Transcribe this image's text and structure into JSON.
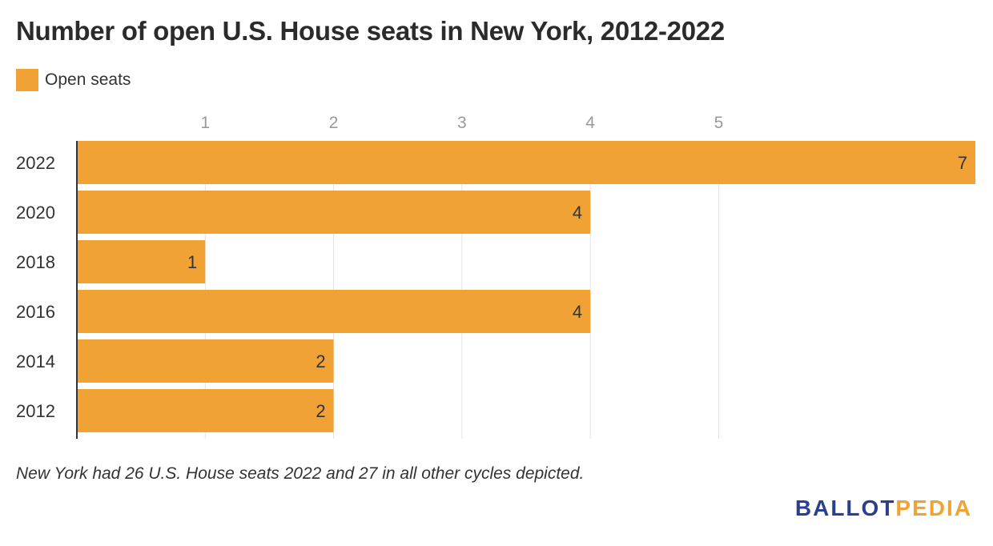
{
  "colors": {
    "bar": "#f0a334",
    "grid": "#e3e3e3",
    "axis": "#333333"
  },
  "chart_data": {
    "type": "bar",
    "orientation": "horizontal",
    "title": "Number of open U.S. House seats in New York, 2012-2022",
    "categories": [
      "2022",
      "2020",
      "2018",
      "2016",
      "2014",
      "2012"
    ],
    "series": [
      {
        "name": "Open seats",
        "values": [
          7,
          4,
          1,
          4,
          2,
          2
        ]
      }
    ],
    "x_ticks": [
      1,
      2,
      3,
      4,
      5
    ],
    "xlim": [
      0,
      7
    ],
    "grid": true,
    "legend": "top-left",
    "note": "New York had 26 U.S. House seats 2022 and 27 in all other cycles depicted."
  },
  "logo": {
    "part1": "BALLOT",
    "part2": "PEDIA"
  }
}
